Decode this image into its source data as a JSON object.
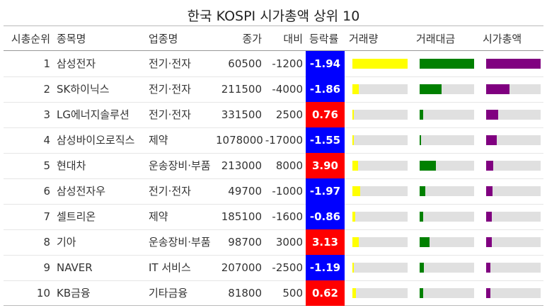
{
  "title": "한국 KOSPI 시가총액 상위 10",
  "columns": {
    "rank": "시총순위",
    "name": "종목명",
    "sector": "업종명",
    "price": "종가",
    "diff": "대비",
    "change": "등락률",
    "volume": "거래량",
    "value": "거래대금",
    "marketcap": "시가총액"
  },
  "colors": {
    "up": "#ff0000",
    "down": "#0000ff",
    "volume": "#ffff00",
    "value": "#008000",
    "marketcap": "#800080",
    "track": "#e0e0e0"
  },
  "chart_data": {
    "type": "table",
    "rows": [
      {
        "rank": 1,
        "name": "삼성전자",
        "sector": "전기·전자",
        "price": 60500,
        "diff": -1200,
        "change": -1.94,
        "volume_frac": 1.0,
        "value_frac": 1.0,
        "marketcap_frac": 1.0
      },
      {
        "rank": 2,
        "name": "SK하이닉스",
        "sector": "전기·전자",
        "price": 211500,
        "diff": -4000,
        "change": -1.86,
        "volume_frac": 0.12,
        "value_frac": 0.4,
        "marketcap_frac": 0.43
      },
      {
        "rank": 3,
        "name": "LG에너지솔루션",
        "sector": "전기·전자",
        "price": 331500,
        "diff": 2500,
        "change": 0.76,
        "volume_frac": 0.02,
        "value_frac": 0.07,
        "marketcap_frac": 0.22
      },
      {
        "rank": 4,
        "name": "삼성바이오로직스",
        "sector": "제약",
        "price": 1078000,
        "diff": -17000,
        "change": -1.55,
        "volume_frac": 0.01,
        "value_frac": 0.03,
        "marketcap_frac": 0.2
      },
      {
        "rank": 5,
        "name": "현대차",
        "sector": "운송장비·부품",
        "price": 213000,
        "diff": 8000,
        "change": 3.9,
        "volume_frac": 0.1,
        "value_frac": 0.3,
        "marketcap_frac": 0.13
      },
      {
        "rank": 6,
        "name": "삼성전자우",
        "sector": "전기·전자",
        "price": 49700,
        "diff": -1000,
        "change": -1.97,
        "volume_frac": 0.14,
        "value_frac": 0.1,
        "marketcap_frac": 0.12
      },
      {
        "rank": 7,
        "name": "셀트리온",
        "sector": "제약",
        "price": 185100,
        "diff": -1600,
        "change": -0.86,
        "volume_frac": 0.05,
        "value_frac": 0.06,
        "marketcap_frac": 0.1
      },
      {
        "rank": 8,
        "name": "기아",
        "sector": "운송장비·부품",
        "price": 98700,
        "diff": 3000,
        "change": 3.13,
        "volume_frac": 0.12,
        "value_frac": 0.18,
        "marketcap_frac": 0.1
      },
      {
        "rank": 9,
        "name": "NAVER",
        "sector": "IT 서비스",
        "price": 207000,
        "diff": -2500,
        "change": -1.19,
        "volume_frac": 0.03,
        "value_frac": 0.08,
        "marketcap_frac": 0.08
      },
      {
        "rank": 10,
        "name": "KB금융",
        "sector": "기타금융",
        "price": 81800,
        "diff": 500,
        "change": 0.62,
        "volume_frac": 0.07,
        "value_frac": 0.07,
        "marketcap_frac": 0.08
      }
    ]
  }
}
